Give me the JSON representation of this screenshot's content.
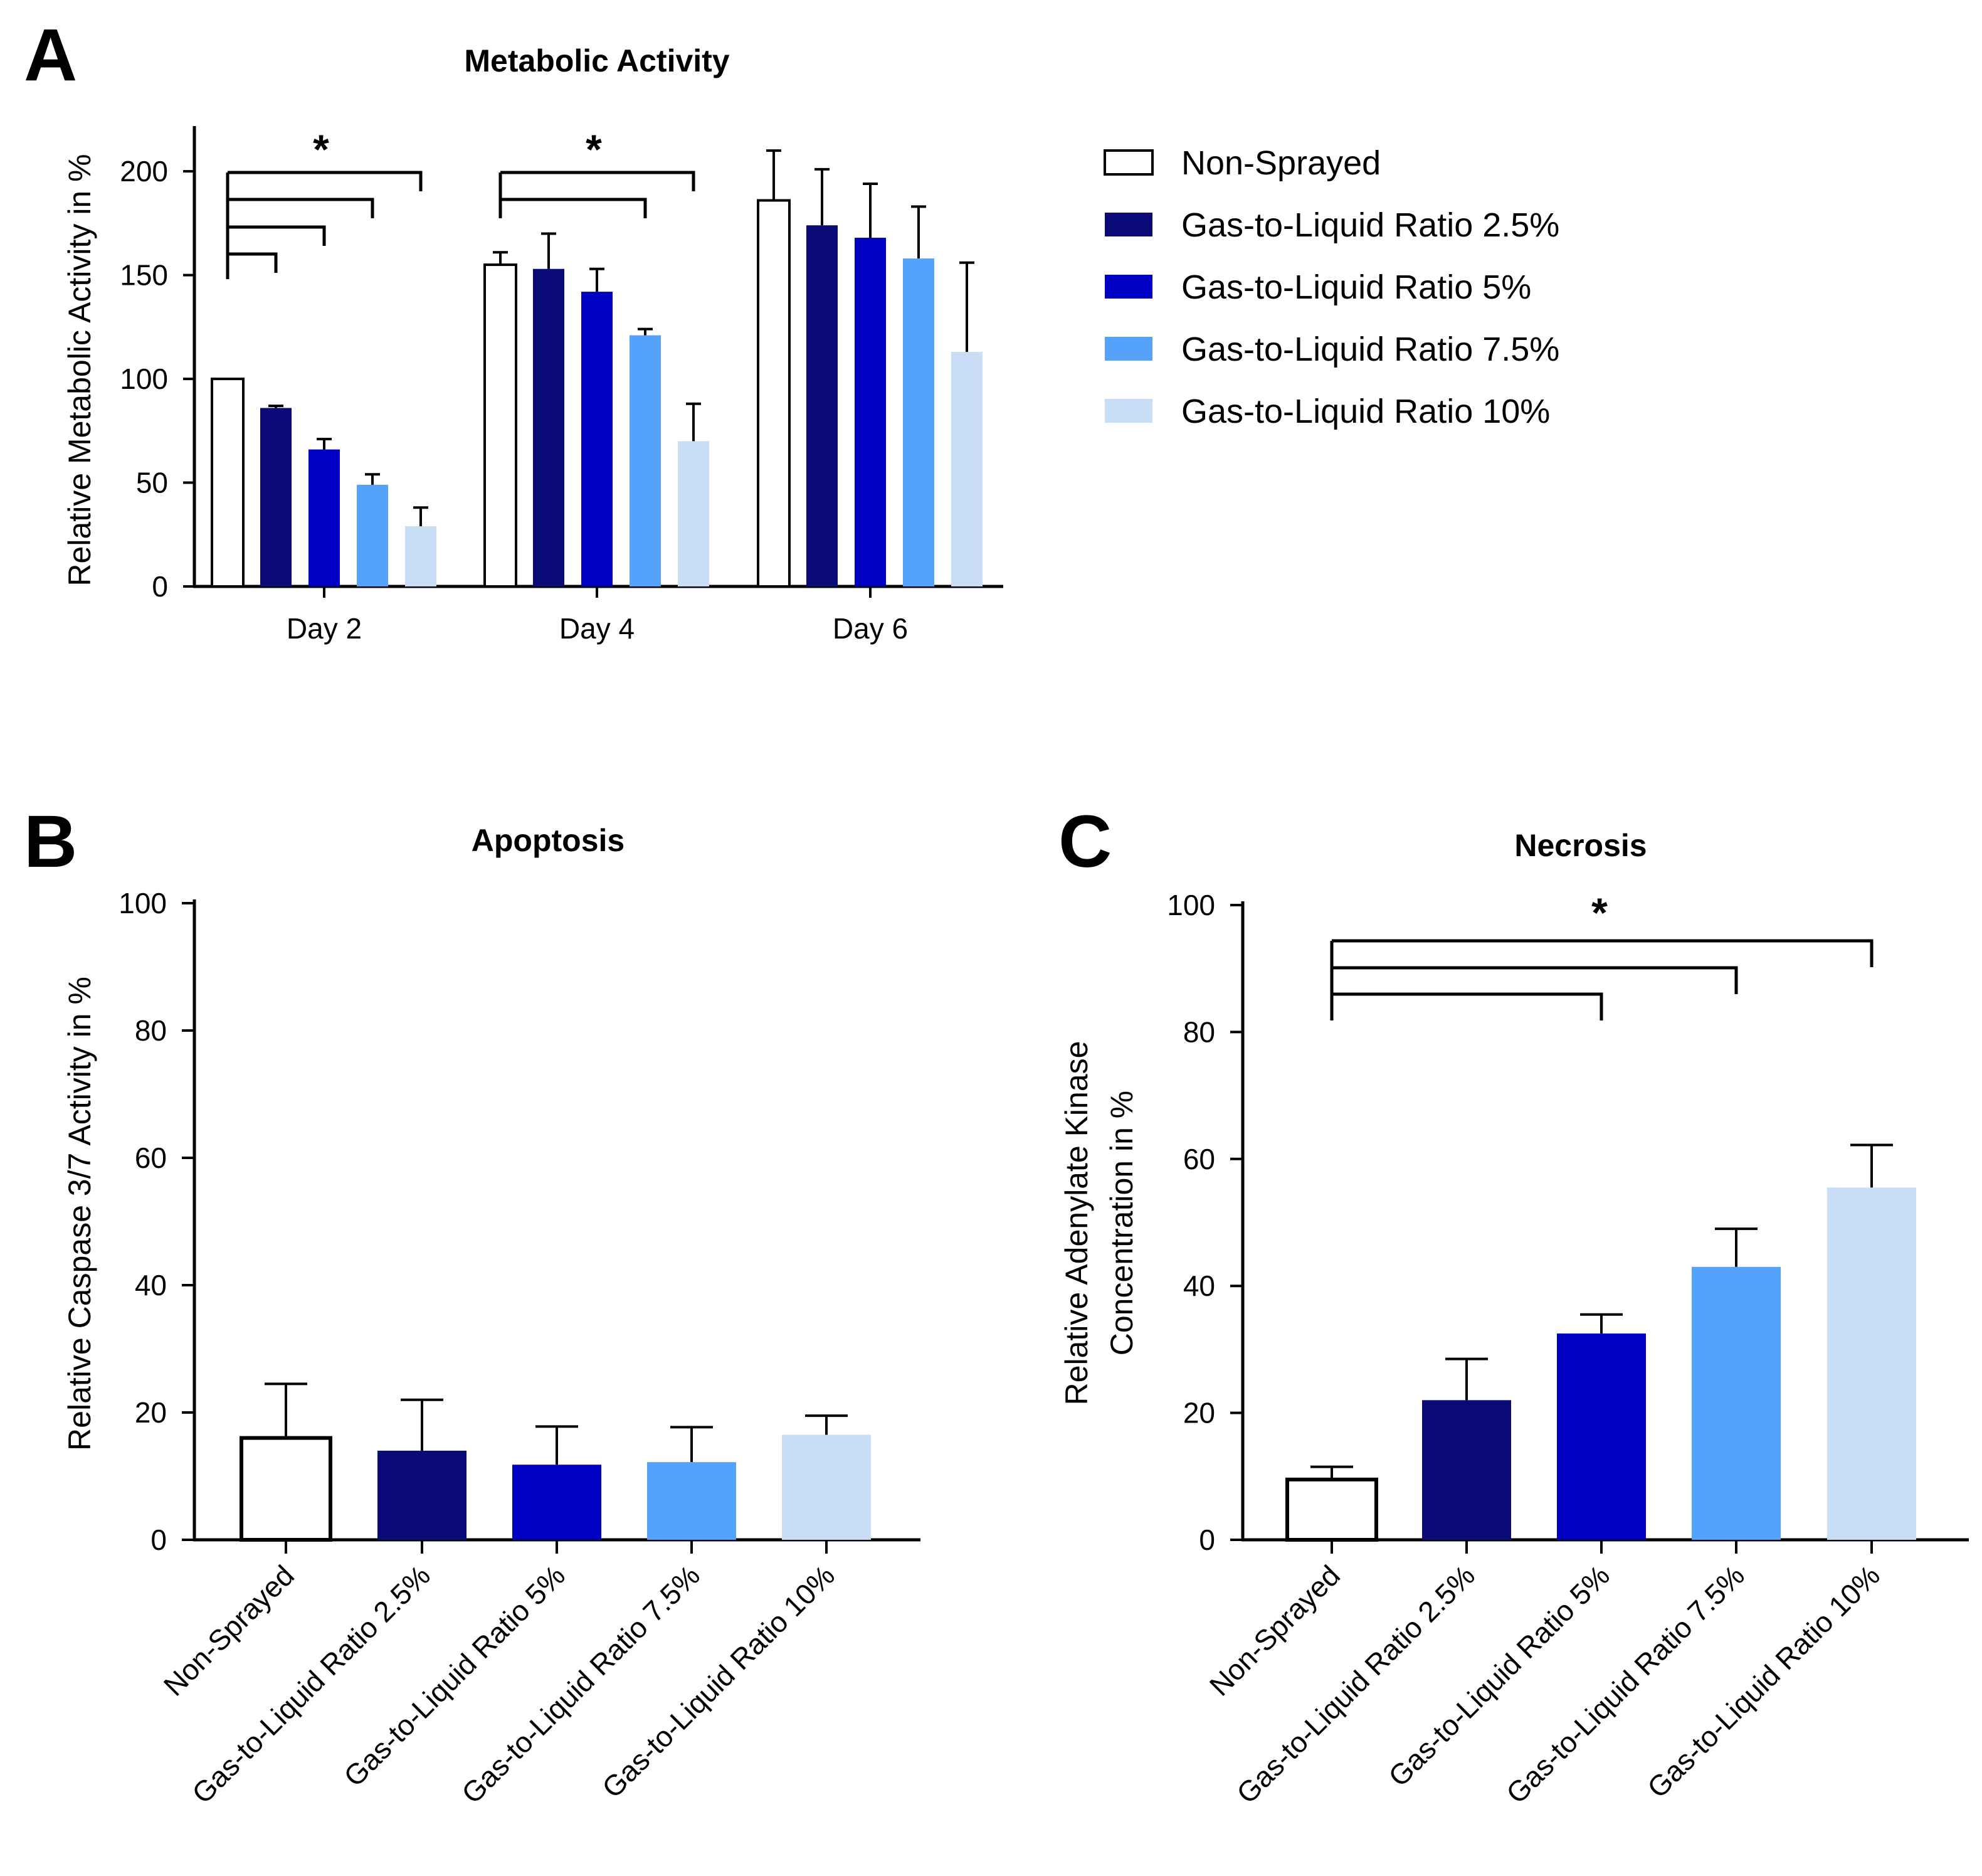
{
  "colors": {
    "Non-Sprayed": "#ffffff",
    "Gas-to-Liquid Ratio 2.5%": "#0b0b78",
    "Gas-to-Liquid Ratio 5%": "#0000c4",
    "Gas-to-Liquid Ratio 7.5%": "#55a2fa",
    "Gas-to-Liquid Ratio 10%": "#c9ddf6"
  },
  "legend": {
    "items": [
      "Non-Sprayed",
      "Gas-to-Liquid Ratio 2.5%",
      "Gas-to-Liquid Ratio 5%",
      "Gas-to-Liquid Ratio 7.5%",
      "Gas-to-Liquid Ratio 10%"
    ]
  },
  "panels": {
    "a": {
      "letter": "A"
    },
    "b": {
      "letter": "B"
    },
    "c": {
      "letter": "C"
    }
  },
  "chart_data": [
    {
      "type": "bar",
      "title": "Metabolic Activity",
      "xlabel": "",
      "ylabel": "Relative Metabolic Activity in %",
      "ylim": [
        0,
        220
      ],
      "yticks": [
        0,
        50,
        100,
        150,
        200
      ],
      "categories": [
        "Day 2",
        "Day 4",
        "Day 6"
      ],
      "series": [
        {
          "name": "Non-Sprayed",
          "values": [
            100,
            155,
            186
          ],
          "errors": [
            0,
            6,
            24
          ]
        },
        {
          "name": "Gas-to-Liquid Ratio 2.5%",
          "values": [
            86,
            153,
            174
          ],
          "errors": [
            1,
            17,
            27
          ]
        },
        {
          "name": "Gas-to-Liquid Ratio 5%",
          "values": [
            66,
            142,
            168
          ],
          "errors": [
            5,
            11,
            26
          ]
        },
        {
          "name": "Gas-to-Liquid Ratio 7.5%",
          "values": [
            49,
            121,
            158
          ],
          "errors": [
            5,
            3,
            25
          ]
        },
        {
          "name": "Gas-to-Liquid Ratio 10%",
          "values": [
            29,
            70,
            113
          ],
          "errors": [
            9,
            18,
            43
          ]
        }
      ],
      "significance": [
        {
          "category": 0,
          "from": 0,
          "to": [
            1,
            2,
            3,
            4
          ],
          "label": "*"
        },
        {
          "category": 1,
          "from": 0,
          "to": [
            3,
            4
          ],
          "label": "*"
        }
      ]
    },
    {
      "type": "bar",
      "title": "Apoptosis",
      "xlabel": "",
      "ylabel": "Relative Caspase 3/7 Activity in %",
      "ylim": [
        0,
        100
      ],
      "yticks": [
        0,
        20,
        40,
        60,
        80,
        100
      ],
      "categories": [
        "Non-Sprayed",
        "Gas-to-Liquid Ratio 2.5%",
        "Gas-to-Liquid Ratio 5%",
        "Gas-to-Liquid Ratio 7.5%",
        "Gas-to-Liquid Ratio 10%"
      ],
      "values": [
        16,
        14,
        11.8,
        12.2,
        16.5
      ],
      "errors": [
        8.5,
        8,
        6,
        5.5,
        3
      ]
    },
    {
      "type": "bar",
      "title": "Necrosis",
      "xlabel": "",
      "ylabel": [
        "Relative Adenylate Kinase",
        "Concentration in %"
      ],
      "ylim": [
        0,
        100
      ],
      "yticks": [
        0,
        20,
        40,
        60,
        80,
        100
      ],
      "categories": [
        "Non-Sprayed",
        "Gas-to-Liquid Ratio 2.5%",
        "Gas-to-Liquid Ratio 5%",
        "Gas-to-Liquid Ratio 7.5%",
        "Gas-to-Liquid Ratio 10%"
      ],
      "values": [
        9.5,
        22,
        32.5,
        43,
        55.5
      ],
      "errors": [
        2,
        6.5,
        3,
        6,
        6.7
      ],
      "significance": [
        {
          "from": 0,
          "to": [
            2,
            3,
            4
          ],
          "label": "*"
        }
      ]
    }
  ]
}
